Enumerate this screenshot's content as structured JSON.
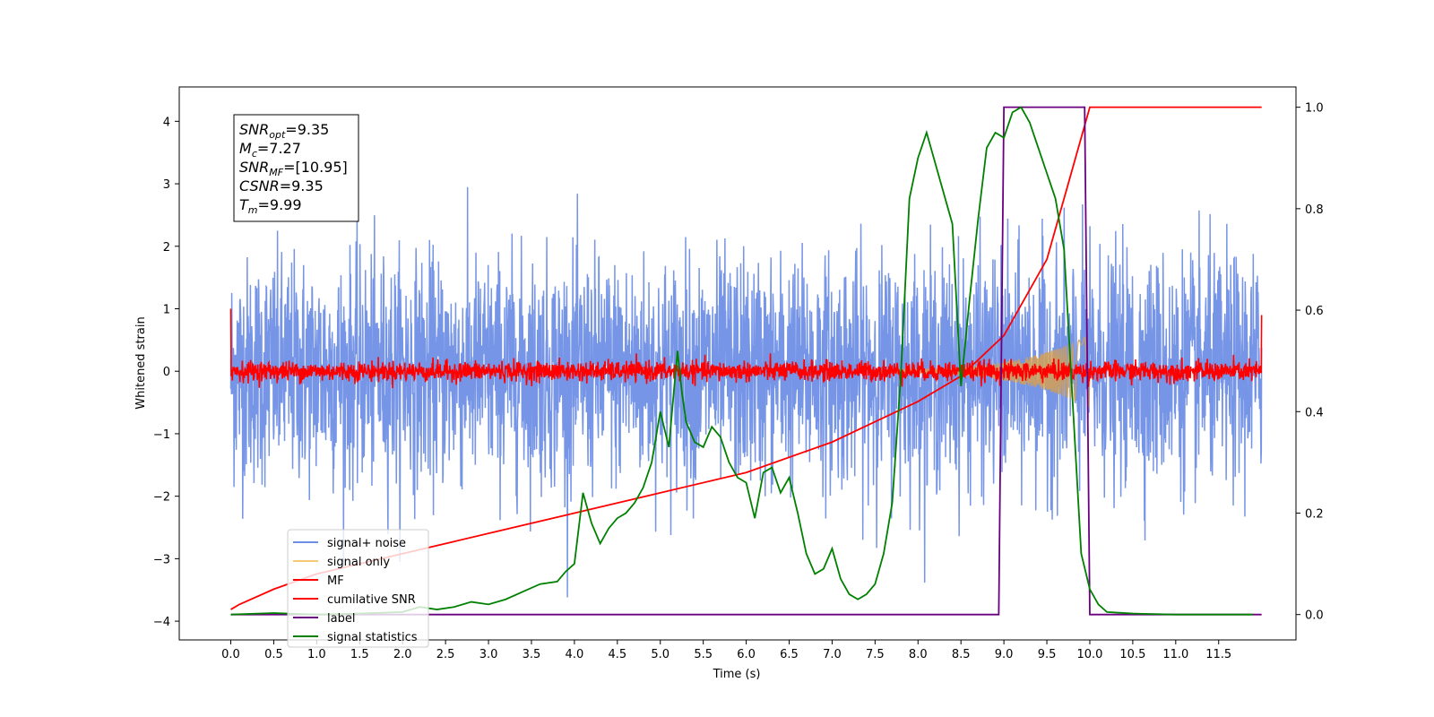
{
  "chart_data": {
    "type": "line",
    "xlabel": "Time (s)",
    "ylabel": "Whitened strain",
    "xlim": [
      -0.6,
      12.4
    ],
    "ylim": [
      -4.3,
      4.55
    ],
    "ylim_right": [
      -0.05,
      1.04
    ],
    "x_ticks": [
      "0.0",
      "0.5",
      "1.0",
      "1.5",
      "2.0",
      "2.5",
      "3.0",
      "3.5",
      "4.0",
      "4.5",
      "5.0",
      "5.5",
      "6.0",
      "6.5",
      "7.0",
      "7.5",
      "8.0",
      "8.5",
      "9.0",
      "9.5",
      "10.0",
      "10.5",
      "11.0",
      "11.5"
    ],
    "y_ticks_left": [
      "4",
      "3",
      "2",
      "1",
      "0",
      "−1",
      "−2",
      "−3",
      "−4"
    ],
    "y_ticks_right": [
      "1.0",
      "0.8",
      "0.6",
      "0.4",
      "0.2",
      "0.0"
    ],
    "annotation": {
      "lines": [
        {
          "name": "SNR",
          "sub": "opt",
          "value": "=9.35"
        },
        {
          "name": "M",
          "sub": "c",
          "value": "=7.27"
        },
        {
          "name": "SNR",
          "sub": "MF",
          "value": "=[10.95]"
        },
        {
          "name": "CSNR",
          "sub": "",
          "value": "=9.35"
        },
        {
          "name": "T",
          "sub": "m",
          "value": "=9.99"
        }
      ]
    },
    "legend": {
      "placement": "lower-left",
      "entries": [
        {
          "label": "signal+ noise",
          "color": "#6f8fe6"
        },
        {
          "label": "signal only",
          "color": "#f5c878"
        },
        {
          "label": "MF",
          "color": "#ff0000"
        },
        {
          "label": "cumilative SNR",
          "color": "#ff0000"
        },
        {
          "label": "label",
          "color": "#6a0080"
        },
        {
          "label": "signal statistics",
          "color": "#008000"
        }
      ]
    },
    "series": [
      {
        "name": "signal+ noise",
        "axis": "left",
        "color": "#6f8fe6",
        "kind": "noise-envelope",
        "x_range": [
          0.0,
          12.0
        ],
        "std": 1.0
      },
      {
        "name": "signal only",
        "axis": "left",
        "color": "#d4a055",
        "kind": "chirp",
        "x_range": [
          7.5,
          10.0
        ],
        "amplitude_end": 0.55
      },
      {
        "name": "MF",
        "axis": "left",
        "color": "#ff0000",
        "kind": "noise-envelope",
        "x_range": [
          0.0,
          12.0
        ],
        "std": 0.08,
        "start_value": 1.0,
        "end_value": 0.9
      },
      {
        "name": "cumilative SNR",
        "axis": "right",
        "color": "#ff0000",
        "x": [
          0.0,
          0.1,
          0.5,
          1.0,
          2.0,
          3.0,
          4.0,
          5.0,
          6.0,
          7.0,
          7.5,
          8.0,
          8.5,
          9.0,
          9.5,
          9.8,
          10.0,
          12.0
        ],
        "y": [
          0.01,
          0.02,
          0.05,
          0.08,
          0.12,
          0.16,
          0.2,
          0.24,
          0.28,
          0.34,
          0.38,
          0.42,
          0.47,
          0.55,
          0.7,
          0.88,
          1.0,
          1.0
        ]
      },
      {
        "name": "label",
        "axis": "right",
        "color": "#6a0080",
        "x": [
          0.0,
          8.94,
          9.0,
          9.94,
          10.0,
          12.0
        ],
        "y": [
          0.0,
          0.0,
          1.0,
          1.0,
          0.0,
          0.0
        ]
      },
      {
        "name": "signal statistics",
        "axis": "right",
        "color": "#008000",
        "x": [
          0.0,
          0.5,
          1.0,
          1.5,
          2.0,
          2.2,
          2.4,
          2.6,
          2.8,
          3.0,
          3.2,
          3.4,
          3.6,
          3.8,
          3.9,
          4.0,
          4.1,
          4.2,
          4.3,
          4.4,
          4.5,
          4.6,
          4.7,
          4.8,
          4.9,
          5.0,
          5.1,
          5.2,
          5.25,
          5.3,
          5.4,
          5.5,
          5.6,
          5.7,
          5.8,
          5.9,
          6.0,
          6.1,
          6.2,
          6.3,
          6.4,
          6.5,
          6.6,
          6.7,
          6.8,
          6.9,
          7.0,
          7.1,
          7.2,
          7.3,
          7.4,
          7.5,
          7.6,
          7.7,
          7.8,
          7.9,
          8.0,
          8.1,
          8.2,
          8.3,
          8.4,
          8.5,
          8.6,
          8.7,
          8.8,
          8.9,
          9.0,
          9.1,
          9.2,
          9.3,
          9.4,
          9.5,
          9.6,
          9.7,
          9.8,
          9.9,
          10.0,
          10.1,
          10.2,
          10.5,
          11.0,
          11.5,
          11.9
        ],
        "y": [
          0.0,
          0.003,
          0.0,
          0.002,
          0.005,
          0.015,
          0.01,
          0.015,
          0.025,
          0.02,
          0.03,
          0.045,
          0.06,
          0.065,
          0.085,
          0.1,
          0.24,
          0.18,
          0.14,
          0.17,
          0.19,
          0.2,
          0.22,
          0.25,
          0.3,
          0.4,
          0.33,
          0.52,
          0.44,
          0.38,
          0.34,
          0.33,
          0.37,
          0.35,
          0.3,
          0.27,
          0.26,
          0.19,
          0.28,
          0.29,
          0.24,
          0.27,
          0.2,
          0.12,
          0.08,
          0.09,
          0.13,
          0.07,
          0.04,
          0.03,
          0.04,
          0.06,
          0.12,
          0.22,
          0.47,
          0.82,
          0.9,
          0.95,
          0.89,
          0.83,
          0.77,
          0.45,
          0.62,
          0.78,
          0.92,
          0.95,
          0.94,
          0.99,
          1.0,
          0.97,
          0.92,
          0.87,
          0.82,
          0.72,
          0.42,
          0.12,
          0.05,
          0.02,
          0.005,
          0.002,
          0.0,
          0.0,
          0.0
        ]
      }
    ]
  }
}
